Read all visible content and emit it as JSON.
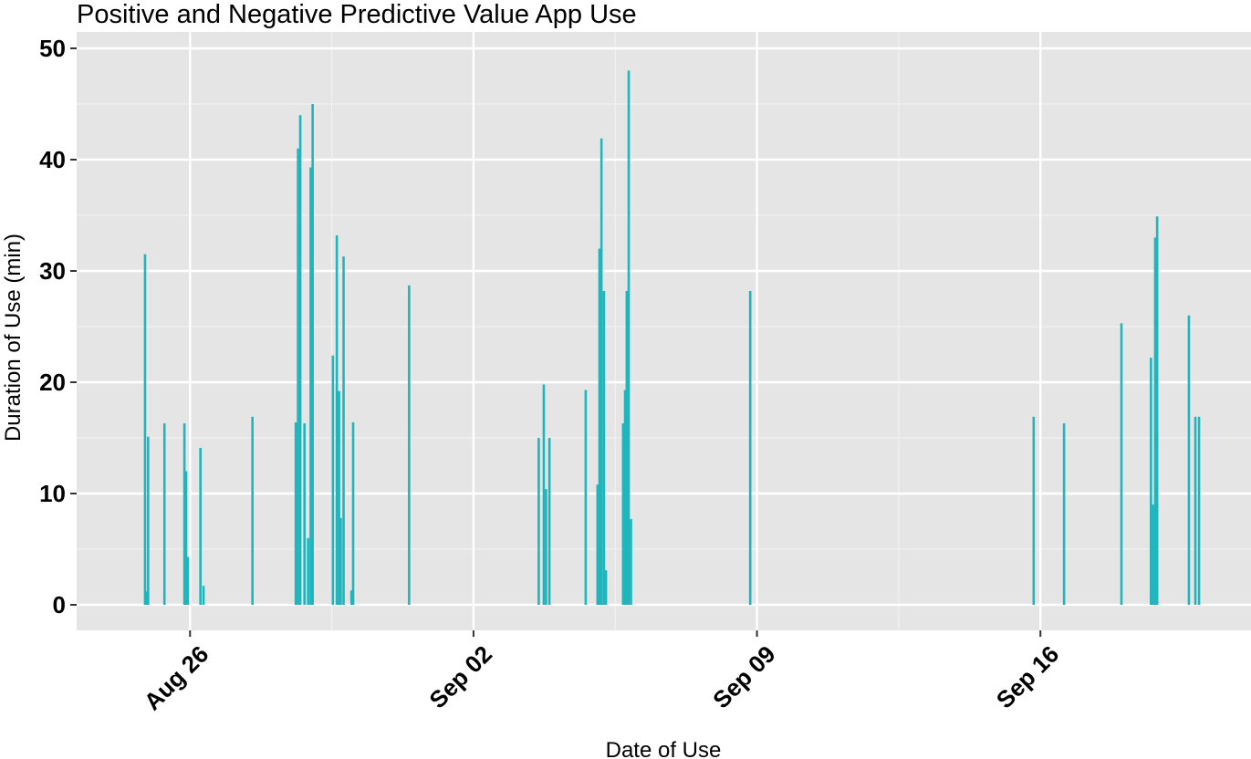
{
  "chart_data": {
    "type": "bar",
    "title": "Positive and Negative Predictive Value App Use",
    "xlabel": "Date of Use",
    "ylabel": "Duration of Use (min)",
    "ylim": [
      0,
      50
    ],
    "yticks": [
      0,
      10,
      20,
      30,
      40,
      50
    ],
    "xticks": [
      "Aug 26",
      "Sep 02",
      "Sep 09",
      "Sep 16"
    ],
    "x_start_tick": "Aug 26",
    "xlim_days": [
      -2.8,
      26.2
    ],
    "grid": true,
    "bar_color": "#1FB5BD",
    "panel_color": "#E5E5E5",
    "series": [
      {
        "values": [
          {
            "x": "Aug 24 21:20",
            "y": 31.5
          },
          {
            "x": "Aug 24 22:30",
            "y": 1.2
          },
          {
            "x": "Aug 24 23:10",
            "y": 15.1
          },
          {
            "x": "Aug 25 08:50",
            "y": 16.3
          },
          {
            "x": "Aug 25 20:40",
            "y": 16.3
          },
          {
            "x": "Aug 25 21:40",
            "y": 12.0
          },
          {
            "x": "Aug 25 22:40",
            "y": 4.3
          },
          {
            "x": "Aug 26 06:10",
            "y": 14.1
          },
          {
            "x": "Aug 26 08:00",
            "y": 1.7
          },
          {
            "x": "Aug 27 13:00",
            "y": 16.9
          },
          {
            "x": "Aug 28 14:40",
            "y": 16.4
          },
          {
            "x": "Aug 28 16:00",
            "y": 41.0
          },
          {
            "x": "Aug 28 17:20",
            "y": 44.0
          },
          {
            "x": "Aug 28 19:50",
            "y": 16.3
          },
          {
            "x": "Aug 28 22:00",
            "y": 6.0
          },
          {
            "x": "Aug 28 23:30",
            "y": 39.3
          },
          {
            "x": "Aug 29 00:40",
            "y": 45.0
          },
          {
            "x": "Aug 29 12:40",
            "y": 22.4
          },
          {
            "x": "Aug 29 15:00",
            "y": 33.2
          },
          {
            "x": "Aug 29 16:20",
            "y": 19.2
          },
          {
            "x": "Aug 29 17:20",
            "y": 7.8
          },
          {
            "x": "Aug 29 19:00",
            "y": 31.3
          },
          {
            "x": "Aug 29 23:40",
            "y": 1.3
          },
          {
            "x": "Aug 30 00:40",
            "y": 16.4
          },
          {
            "x": "Aug 31 09:50",
            "y": 28.7
          },
          {
            "x": "Sep 03 14:40",
            "y": 15.0
          },
          {
            "x": "Sep 03 17:40",
            "y": 19.8
          },
          {
            "x": "Sep 03 19:00",
            "y": 10.4
          },
          {
            "x": "Sep 03 21:00",
            "y": 15.0
          },
          {
            "x": "Sep 04 18:30",
            "y": 19.3
          },
          {
            "x": "Sep 05 01:30",
            "y": 10.8
          },
          {
            "x": "Sep 05 02:40",
            "y": 32.0
          },
          {
            "x": "Sep 05 03:50",
            "y": 41.9
          },
          {
            "x": "Sep 05 05:20",
            "y": 28.2
          },
          {
            "x": "Sep 05 06:30",
            "y": 3.1
          },
          {
            "x": "Sep 05 16:40",
            "y": 16.3
          },
          {
            "x": "Sep 05 17:50",
            "y": 19.3
          },
          {
            "x": "Sep 05 18:50",
            "y": 28.2
          },
          {
            "x": "Sep 05 20:00",
            "y": 48.0
          },
          {
            "x": "Sep 05 21:20",
            "y": 7.7
          },
          {
            "x": "Sep 08 20:00",
            "y": 28.2
          },
          {
            "x": "Sep 15 20:00",
            "y": 16.9
          },
          {
            "x": "Sep 16 14:00",
            "y": 16.3
          },
          {
            "x": "Sep 18 00:00",
            "y": 25.3
          },
          {
            "x": "Sep 18 17:30",
            "y": 22.2
          },
          {
            "x": "Sep 18 18:40",
            "y": 9.0
          },
          {
            "x": "Sep 18 20:00",
            "y": 33.0
          },
          {
            "x": "Sep 18 21:10",
            "y": 34.9
          },
          {
            "x": "Sep 19 16:00",
            "y": 26.0
          },
          {
            "x": "Sep 19 19:50",
            "y": 16.9
          },
          {
            "x": "Sep 19 22:00",
            "y": 16.9
          }
        ]
      }
    ]
  }
}
